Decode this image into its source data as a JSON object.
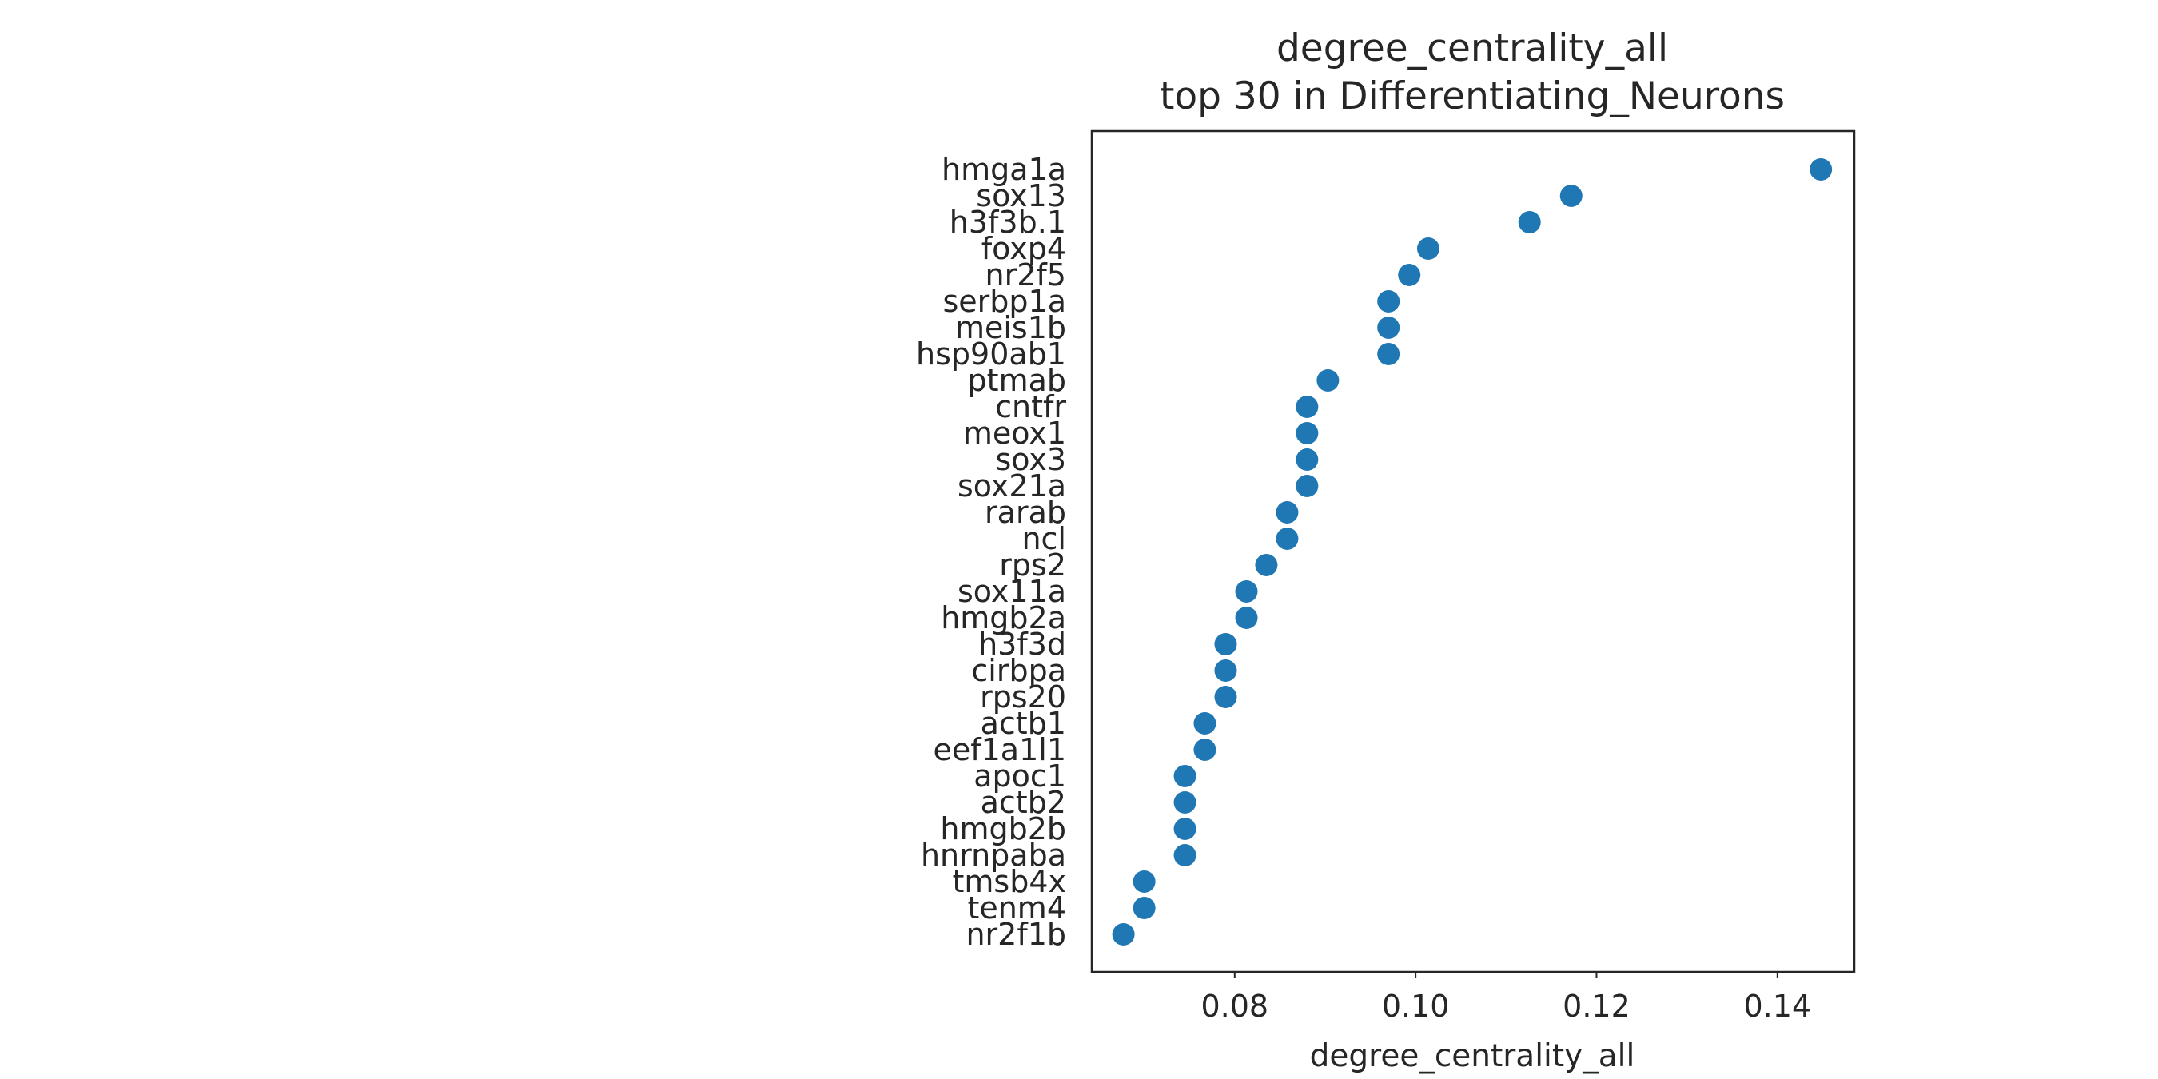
{
  "chart_data": {
    "type": "scatter",
    "title_lines": [
      "degree_centrality_all",
      "top 30 in Differentiating_Neurons"
    ],
    "xlabel": "degree_centrality_all",
    "ylabel": "",
    "xlim": [
      0.0642,
      0.1485
    ],
    "xticks": [
      0.08,
      0.1,
      0.12,
      0.14
    ],
    "xtick_labels": [
      "0.08",
      "0.10",
      "0.12",
      "0.14"
    ],
    "grid": false,
    "marker_color": "#1f77b4",
    "categories": [
      "hmga1a",
      "sox13",
      "h3f3b.1",
      "foxp4",
      "nr2f5",
      "serbp1a",
      "meis1b",
      "hsp90ab1",
      "ptmab",
      "cntfr",
      "meox1",
      "sox3",
      "sox21a",
      "rarab",
      "ncl",
      "rps2",
      "sox11a",
      "hmgb2a",
      "h3f3d",
      "cirbpa",
      "rps20",
      "actb1",
      "eef1a1l1",
      "apoc1",
      "actb2",
      "hmgb2b",
      "hnrnpaba",
      "tmsb4x",
      "tenm4",
      "nr2f1b"
    ],
    "values": [
      0.1448,
      0.1172,
      0.1126,
      0.1014,
      0.0993,
      0.097,
      0.097,
      0.097,
      0.0903,
      0.088,
      0.088,
      0.088,
      0.088,
      0.0858,
      0.0858,
      0.0835,
      0.0813,
      0.0813,
      0.079,
      0.079,
      0.079,
      0.0767,
      0.0767,
      0.0745,
      0.0745,
      0.0745,
      0.0745,
      0.07,
      0.07,
      0.0677
    ]
  }
}
